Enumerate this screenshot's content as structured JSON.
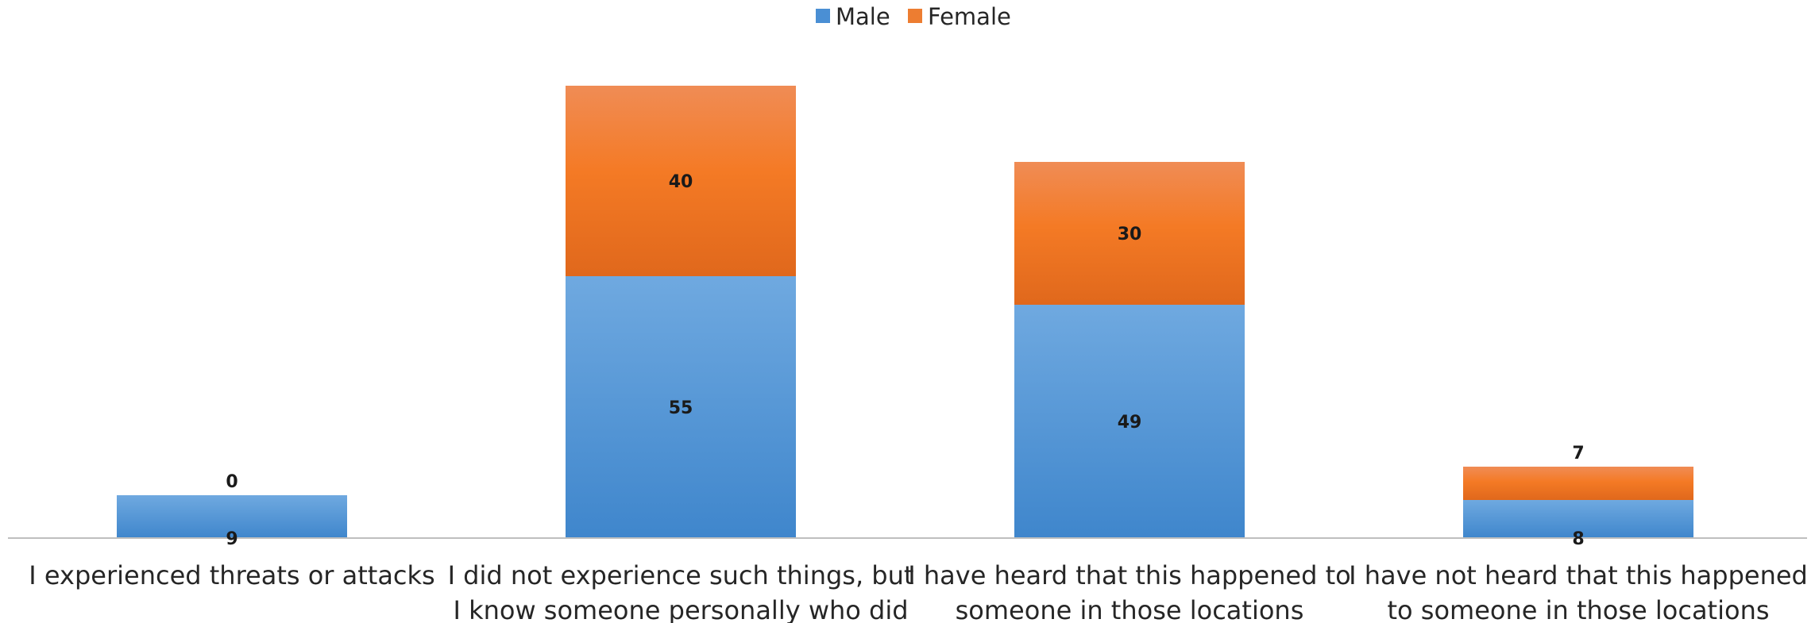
{
  "chart_data": {
    "type": "bar",
    "stacked": true,
    "categories": [
      [
        "I experienced threats or attacks"
      ],
      [
        "I did not experience such things, but",
        "I know someone personally who did"
      ],
      [
        "I have heard that this happened to",
        "someone in those locations"
      ],
      [
        "I have not heard that this happened",
        "to someone in those locations"
      ]
    ],
    "series": [
      {
        "name": "Male",
        "values": [
          9,
          55,
          49,
          8
        ],
        "color": "#4a8fd4"
      },
      {
        "name": "Female",
        "values": [
          0,
          40,
          30,
          7
        ],
        "color": "#ed7d31"
      }
    ],
    "ylim": [
      0,
      97
    ],
    "grid": false,
    "legend": "top-center"
  }
}
